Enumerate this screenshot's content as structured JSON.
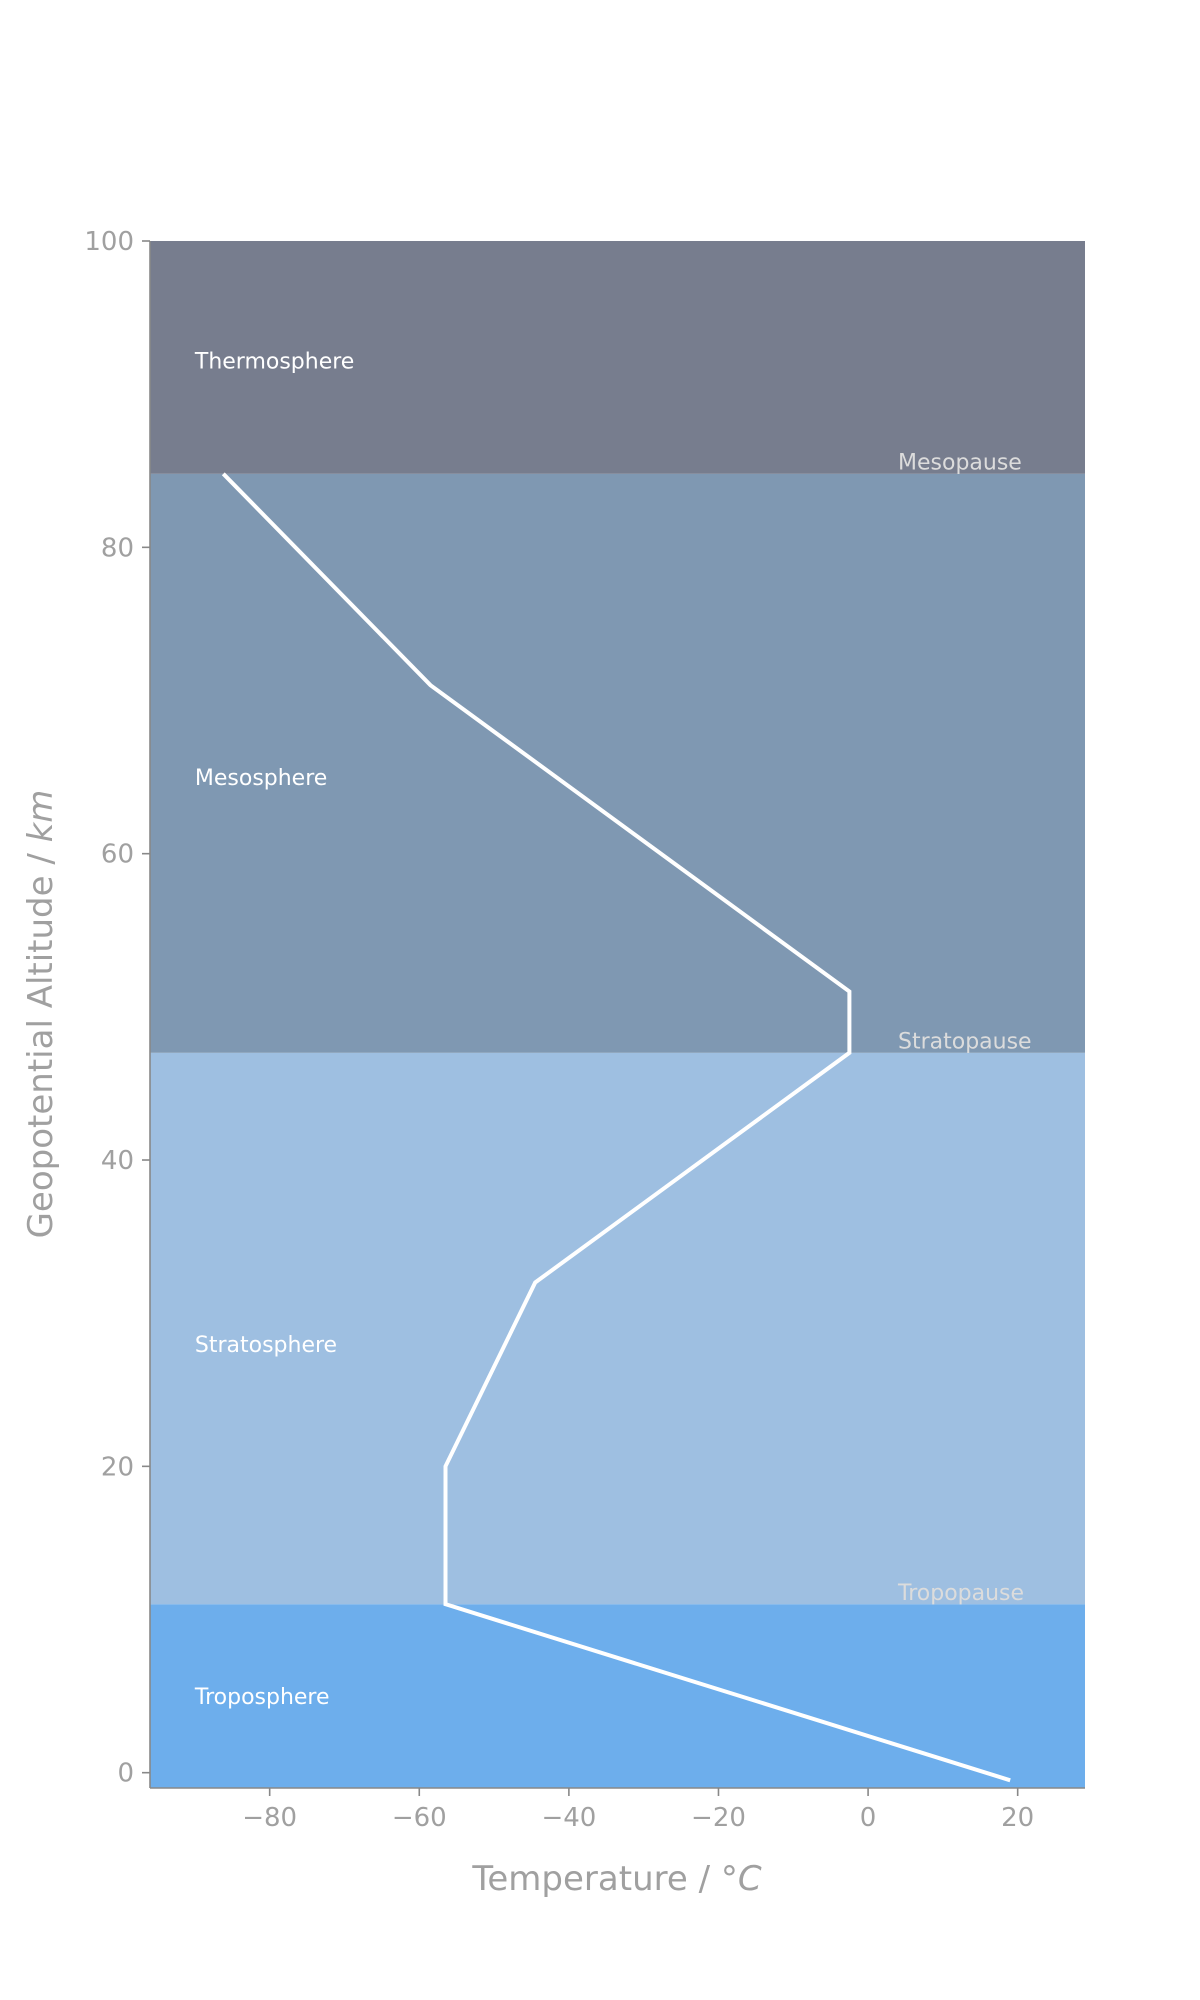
{
  "chart_data": {
    "type": "line",
    "title": "",
    "xlabel": "Temperature / ",
    "xlabel_unit": "°C",
    "ylabel": "Geopotential Altitude / ",
    "ylabel_unit": "km",
    "xlim": [
      -96,
      29
    ],
    "ylim": [
      -1,
      100
    ],
    "xticks": [
      -80,
      -60,
      -40,
      -20,
      0,
      20
    ],
    "xtick_labels": [
      "−80",
      "−60",
      "−40",
      "−20",
      "0",
      "20"
    ],
    "yticks": [
      0,
      20,
      40,
      60,
      80,
      100
    ],
    "ytick_labels": [
      "0",
      "20",
      "40",
      "60",
      "80",
      "100"
    ],
    "grid": false,
    "series": [
      {
        "x": [
          19.0,
          -56.5,
          -56.5,
          -44.5,
          -2.5,
          -2.5,
          -58.5,
          -86.2
        ],
        "y": [
          -0.5,
          11,
          20,
          32,
          47,
          51,
          71,
          84.8
        ],
        "color": "#ffffff"
      }
    ],
    "layers": [
      {
        "name": "Troposphere",
        "y0": -1,
        "y1": 11,
        "color": "#6daeec"
      },
      {
        "name": "Stratosphere",
        "y0": 11,
        "y1": 47,
        "color": "#9ebfe1"
      },
      {
        "name": "Mesosphere",
        "y0": 47,
        "y1": 84.8,
        "color": "#7f98b2"
      },
      {
        "name": "Thermosphere",
        "y0": 84.8,
        "y1": 100,
        "color": "#777d8e"
      }
    ],
    "layer_labels": [
      {
        "text": "Troposphere",
        "x": -90,
        "y": 5
      },
      {
        "text": "Stratosphere",
        "x": -90,
        "y": 28
      },
      {
        "text": "Mesosphere",
        "x": -90,
        "y": 65
      },
      {
        "text": "Thermosphere",
        "x": -90,
        "y": 92.2
      }
    ],
    "pause_labels": [
      {
        "text": "Tropopause",
        "x": 4,
        "y": 11.8
      },
      {
        "text": "Stratopause",
        "x": 4,
        "y": 47.8
      },
      {
        "text": "Mesopause",
        "x": 4,
        "y": 85.6
      }
    ]
  }
}
